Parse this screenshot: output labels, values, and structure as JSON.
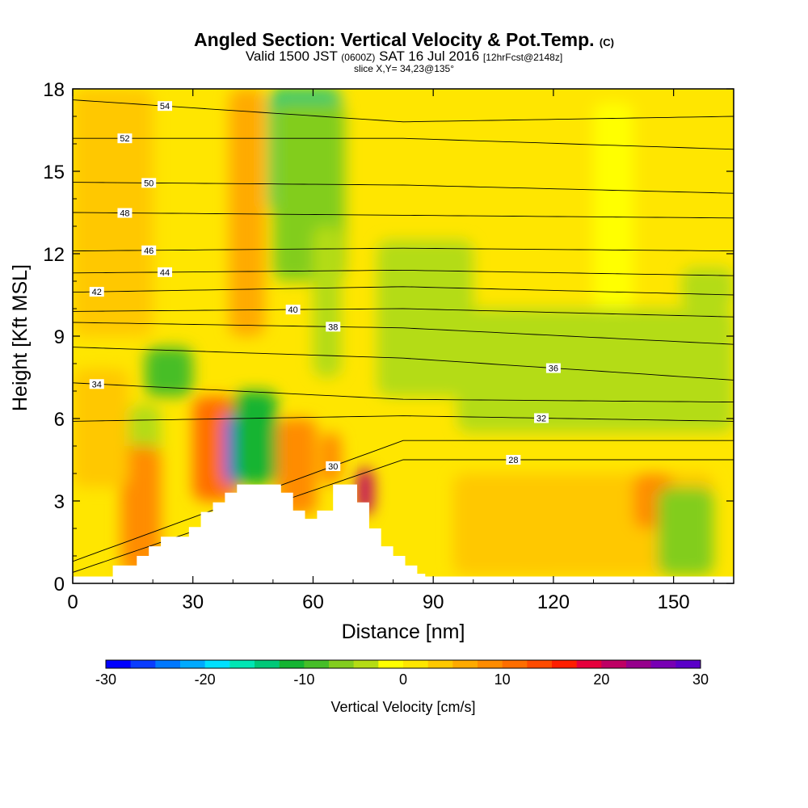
{
  "header": {
    "title": "Angled Section: Vertical Velocity & Pot.Temp.",
    "title_mark": "(C)",
    "valid_prefix": "Valid 1500 JST",
    "valid_zulu": "(0600Z)",
    "valid_date": "SAT 16 Jul 2016",
    "forecast": "[12hrFcst@2148z]",
    "slice": "slice X,Y= 34,23@135°"
  },
  "chart_data": {
    "type": "heatmap",
    "xlabel": "Distance [nm]",
    "ylabel": "Height [Kft MSL]",
    "xlim": [
      0,
      165
    ],
    "ylim": [
      0,
      18
    ],
    "x_ticks": [
      0,
      30,
      60,
      90,
      120,
      150
    ],
    "y_ticks": [
      0,
      3,
      6,
      9,
      12,
      15,
      18
    ],
    "colorbar": {
      "label": "Vertical Velocity [cm/s]",
      "range": [
        -30,
        30
      ],
      "tick_values": [
        -30,
        -20,
        -10,
        0,
        10,
        20,
        30
      ],
      "tick_labels": [
        "-30",
        "-20",
        "-10",
        "0",
        "10",
        "20",
        "30"
      ],
      "colors": [
        "#0000ff",
        "#0a3cff",
        "#0078ff",
        "#00aaff",
        "#00e0ff",
        "#00e6b4",
        "#00c878",
        "#14b432",
        "#46be28",
        "#82cd1e",
        "#b4dc14",
        "#ffff00",
        "#ffe600",
        "#ffc800",
        "#ffaa00",
        "#ff8c00",
        "#ff6e00",
        "#ff4b00",
        "#ff1e00",
        "#e6003c",
        "#be0064",
        "#96008c",
        "#7800b4",
        "#5a00c8"
      ]
    },
    "terrain_profile": [
      [
        0,
        0.25
      ],
      [
        10,
        0.25
      ],
      [
        10,
        0.65
      ],
      [
        16,
        0.65
      ],
      [
        16,
        1.0
      ],
      [
        19,
        1.0
      ],
      [
        19,
        1.35
      ],
      [
        22,
        1.35
      ],
      [
        22,
        1.7
      ],
      [
        29,
        1.7
      ],
      [
        29,
        2.05
      ],
      [
        32,
        2.05
      ],
      [
        32,
        2.6
      ],
      [
        35,
        2.6
      ],
      [
        35,
        2.95
      ],
      [
        38,
        2.95
      ],
      [
        38,
        3.3
      ],
      [
        41,
        3.3
      ],
      [
        41,
        3.6
      ],
      [
        52,
        3.6
      ],
      [
        52,
        3.3
      ],
      [
        55,
        3.3
      ],
      [
        55,
        2.65
      ],
      [
        58,
        2.65
      ],
      [
        58,
        2.35
      ],
      [
        61,
        2.35
      ],
      [
        61,
        2.65
      ],
      [
        65,
        2.65
      ],
      [
        65,
        3.6
      ],
      [
        71,
        3.6
      ],
      [
        71,
        2.95
      ],
      [
        74,
        2.95
      ],
      [
        74,
        2.0
      ],
      [
        77,
        2.0
      ],
      [
        77,
        1.35
      ],
      [
        80,
        1.35
      ],
      [
        80,
        1.0
      ],
      [
        83,
        1.0
      ],
      [
        83,
        0.65
      ],
      [
        86,
        0.65
      ],
      [
        86,
        0.35
      ],
      [
        88,
        0.35
      ],
      [
        88,
        0.25
      ],
      [
        165,
        0.25
      ]
    ],
    "velocity_cells": [
      {
        "x": [
          34,
          38
        ],
        "y": [
          3.5,
          6.3
        ],
        "value": 20
      },
      {
        "x": [
          30,
          41
        ],
        "y": [
          3.0,
          6.8
        ],
        "value": 12
      },
      {
        "x": [
          38,
          47
        ],
        "y": [
          3.6,
          6.2
        ],
        "value": -26
      },
      {
        "x": [
          40,
          51
        ],
        "y": [
          3.6,
          7.0
        ],
        "value": -12
      },
      {
        "x": [
          54,
          57
        ],
        "y": [
          2.6,
          5.0
        ],
        "value": 18
      },
      {
        "x": [
          51,
          61
        ],
        "y": [
          2.5,
          6.0
        ],
        "value": 9
      },
      {
        "x": [
          62,
          67
        ],
        "y": [
          3.6,
          5.5
        ],
        "value": 8
      },
      {
        "x": [
          71,
          75
        ],
        "y": [
          2.5,
          4.2
        ],
        "value": 20
      },
      {
        "x": [
          41,
          46
        ],
        "y": [
          10.5,
          18
        ],
        "value": 14
      },
      {
        "x": [
          39,
          48
        ],
        "y": [
          9.0,
          18
        ],
        "value": 6
      },
      {
        "x": [
          49,
          67
        ],
        "y": [
          13.5,
          18
        ],
        "value": -13
      },
      {
        "x": [
          50,
          68
        ],
        "y": [
          11.0,
          17.5
        ],
        "value": -6
      },
      {
        "x": [
          60,
          67
        ],
        "y": [
          7.5,
          13.0
        ],
        "value": -4
      },
      {
        "x": [
          18,
          30
        ],
        "y": [
          6.8,
          8.6
        ],
        "value": -8
      },
      {
        "x": [
          14,
          22
        ],
        "y": [
          4.3,
          6.5
        ],
        "value": -5
      },
      {
        "x": [
          12,
          22
        ],
        "y": [
          0.3,
          5.0
        ],
        "value": 9
      },
      {
        "x": [
          0,
          14
        ],
        "y": [
          3.5,
          7.8
        ],
        "value": 4
      },
      {
        "x": [
          76,
          100
        ],
        "y": [
          6.8,
          12.5
        ],
        "value": -4
      },
      {
        "x": [
          96,
          165
        ],
        "y": [
          5.5,
          10.0
        ],
        "value": -5
      },
      {
        "x": [
          110,
          122
        ],
        "y": [
          0.3,
          4.0
        ],
        "value": 8
      },
      {
        "x": [
          95,
          160
        ],
        "y": [
          0.3,
          4.0
        ],
        "value": 4
      },
      {
        "x": [
          140,
          150
        ],
        "y": [
          2.0,
          4.0
        ],
        "value": 9
      },
      {
        "x": [
          146,
          160
        ],
        "y": [
          0.3,
          3.5
        ],
        "value": -6
      },
      {
        "x": [
          0,
          20
        ],
        "y": [
          9.0,
          18
        ],
        "value": 3
      },
      {
        "x": [
          130,
          140
        ],
        "y": [
          10.0,
          17.5
        ],
        "value": -2
      },
      {
        "x": [
          152,
          165
        ],
        "y": [
          10.0,
          11.5
        ],
        "value": -5
      }
    ],
    "theta_isentropes": [
      {
        "theta": 28,
        "west_height": 0.4,
        "mid_height": 4.5,
        "east_height": 4.5,
        "label_x": 110
      },
      {
        "theta": 30,
        "west_height": 0.8,
        "mid_height": 5.2,
        "east_height": 5.2,
        "label_x": 65
      },
      {
        "theta": 32,
        "west_height": 5.9,
        "mid_height": 6.1,
        "east_height": 5.9,
        "label_x": 117
      },
      {
        "theta": 34,
        "west_height": 7.3,
        "mid_height": 6.7,
        "east_height": 6.6,
        "label_x": 6
      },
      {
        "theta": 36,
        "west_height": 8.6,
        "mid_height": 8.2,
        "east_height": 7.4,
        "label_x": 120
      },
      {
        "theta": 38,
        "west_height": 9.5,
        "mid_height": 9.3,
        "east_height": 8.7,
        "label_x": 65
      },
      {
        "theta": 40,
        "west_height": 9.9,
        "mid_height": 10.0,
        "east_height": 9.7,
        "label_x": 55
      },
      {
        "theta": 42,
        "west_height": 10.6,
        "mid_height": 10.8,
        "east_height": 10.5,
        "label_x": 6
      },
      {
        "theta": 44,
        "west_height": 11.3,
        "mid_height": 11.4,
        "east_height": 11.2,
        "label_x": 23
      },
      {
        "theta": 46,
        "west_height": 12.1,
        "mid_height": 12.2,
        "east_height": 12.1,
        "label_x": 19
      },
      {
        "theta": 48,
        "west_height": 13.5,
        "mid_height": 13.4,
        "east_height": 13.3,
        "label_x": 13
      },
      {
        "theta": 50,
        "west_height": 14.6,
        "mid_height": 14.5,
        "east_height": 14.2,
        "label_x": 19
      },
      {
        "theta": 52,
        "west_height": 16.2,
        "mid_height": 16.2,
        "east_height": 15.8,
        "label_x": 13
      },
      {
        "theta": 54,
        "west_height": 17.6,
        "mid_height": 16.8,
        "east_height": 17.0,
        "label_x": 23
      }
    ]
  }
}
